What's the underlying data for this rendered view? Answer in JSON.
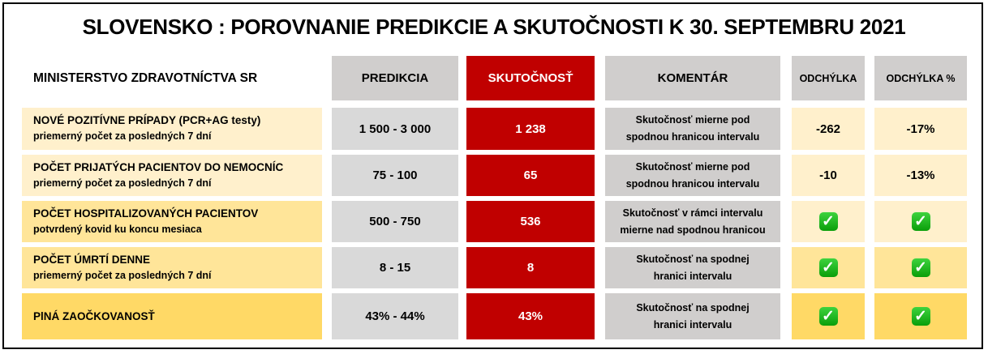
{
  "title": "SLOVENSKO : POROVNANIE PREDIKCIE A SKUTOČNOSTI K 30. SEPTEMBRU 2021",
  "header": {
    "source": "MINISTERSTVO ZDRAVOTNÍCTVA SR",
    "prediction": "PREDIKCIA",
    "actual": "SKUTOČNOSŤ",
    "comment": "KOMENTÁR",
    "deviation": "ODCHÝLKA",
    "deviation_pct": "ODCHÝLKA %"
  },
  "rows": [
    {
      "label": "NOVÉ POZITÍVNE PRÍPADY (PCR+AG testy)",
      "sublabel": "priemerný počet za posledných 7 dní",
      "prediction": "1 500 - 3 000",
      "actual": "1 238",
      "comment1": "Skutočnosť mierne pod",
      "comment2": "spodnou hranicou intervalu",
      "deviation": "-262",
      "deviation_pct": "-17%"
    },
    {
      "label": "POČET PRIJATÝCH PACIENTOV DO NEMOCNÍC",
      "sublabel": "priemerný počet za posledných 7 dní",
      "prediction": "75 - 100",
      "actual": "65",
      "comment1": "Skutočnosť mierne pod",
      "comment2": "spodnou hranicou intervalu",
      "deviation": "-10",
      "deviation_pct": "-13%"
    },
    {
      "label": "POČET HOSPITALIZOVANÝCH PACIENTOV",
      "sublabel": "potvrdený kovid ku koncu mesiaca",
      "prediction": "500 - 750",
      "actual": "536",
      "comment1": "Skutočnosť v rámci intervalu",
      "comment2": "mierne nad spodnou hranicou",
      "deviation_icon": "check-mark-icon",
      "deviation_pct_icon": "check-mark-icon"
    },
    {
      "label": "POČET ÚMRTÍ DENNE",
      "sublabel": "priemerný počet za posledných 7 dní",
      "prediction": "8 - 15",
      "actual": "8",
      "comment1": "Skutočnosť na spodnej",
      "comment2": "hranici intervalu",
      "deviation_icon": "check-mark-icon",
      "deviation_pct_icon": "check-mark-icon"
    },
    {
      "label": "PlNÁ ZAOČKOVANOSŤ",
      "sublabel": "",
      "prediction": "43% - 44%",
      "actual": "43%",
      "comment1": "Skutočnosť na spodnej",
      "comment2": "hranici intervalu",
      "deviation_icon": "check-mark-icon",
      "deviation_pct_icon": "check-mark-icon"
    }
  ],
  "colors": {
    "actual": "#c00000",
    "header_gray": "#d0cecd",
    "light_yellow": "#fff0cc",
    "mid_yellow": "#ffe599",
    "strong_yellow": "#ffd966"
  }
}
